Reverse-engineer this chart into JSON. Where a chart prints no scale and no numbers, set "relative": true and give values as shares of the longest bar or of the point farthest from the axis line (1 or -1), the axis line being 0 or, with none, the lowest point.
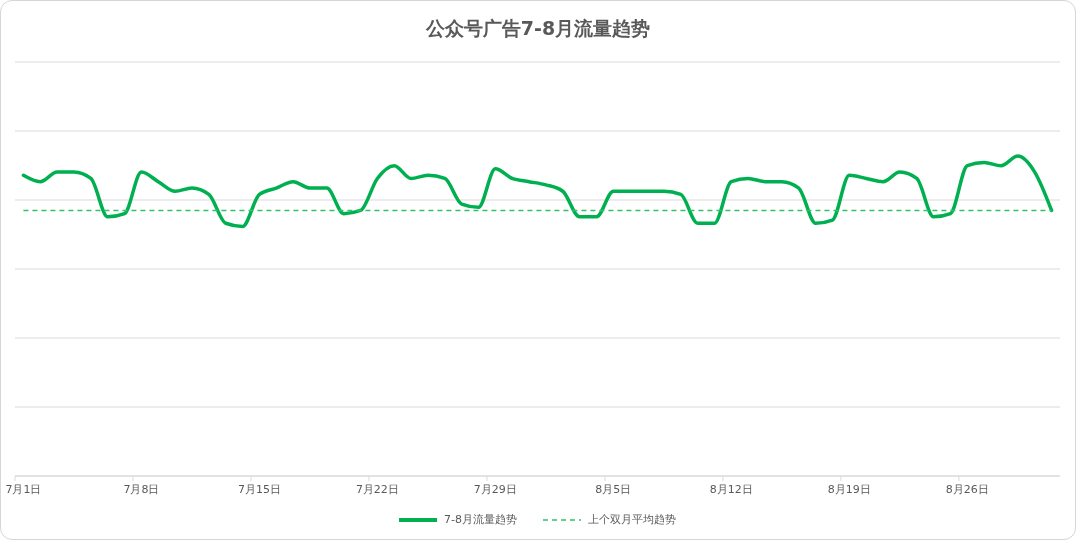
{
  "chart_data": {
    "type": "line",
    "title": "公众号广告7-8月流量趋势",
    "categories": [
      "7月1日",
      null,
      null,
      null,
      null,
      null,
      null,
      "7月8日",
      null,
      null,
      null,
      null,
      null,
      null,
      "7月15日",
      null,
      null,
      null,
      null,
      null,
      null,
      "7月22日",
      null,
      null,
      null,
      null,
      null,
      null,
      "7月29日",
      null,
      null,
      null,
      null,
      null,
      null,
      "8月5日",
      null,
      null,
      null,
      null,
      null,
      null,
      "8月12日",
      null,
      null,
      null,
      null,
      null,
      null,
      "8月19日",
      null,
      null,
      null,
      null,
      null,
      null,
      "8月26日",
      null,
      null,
      null,
      null,
      null
    ],
    "series": [
      {
        "name": "7-8月流量趋势",
        "color": "#00b050",
        "values": [
          0.94,
          0.92,
          0.95,
          0.95,
          0.93,
          0.81,
          0.82,
          0.95,
          0.92,
          0.89,
          0.9,
          0.88,
          0.79,
          0.78,
          0.88,
          0.9,
          0.92,
          0.9,
          0.9,
          0.82,
          0.83,
          0.93,
          0.97,
          0.93,
          0.94,
          0.93,
          0.85,
          0.84,
          0.96,
          0.93,
          0.92,
          0.91,
          0.89,
          0.81,
          0.81,
          0.89,
          0.89,
          0.89,
          0.89,
          0.88,
          0.79,
          0.79,
          0.92,
          0.93,
          0.92,
          0.92,
          0.9,
          0.79,
          0.8,
          0.94,
          0.93,
          0.92,
          0.95,
          0.93,
          0.81,
          0.82,
          0.97,
          0.98,
          0.97,
          1,
          0.95,
          0.83
        ]
      },
      {
        "name": "上个双月平均趋势",
        "color": "#33c26a",
        "line_style": "dashed",
        "values": [
          0.83,
          0.83,
          0.83,
          0.83,
          0.83,
          0.83,
          0.83,
          0.83,
          0.83,
          0.83,
          0.83,
          0.83,
          0.83,
          0.83,
          0.83,
          0.83,
          0.83,
          0.83,
          0.83,
          0.83,
          0.83,
          0.83,
          0.83,
          0.83,
          0.83,
          0.83,
          0.83,
          0.83,
          0.83,
          0.83,
          0.83,
          0.83,
          0.83,
          0.83,
          0.83,
          0.83,
          0.83,
          0.83,
          0.83,
          0.83,
          0.83,
          0.83,
          0.83,
          0.83,
          0.83,
          0.83,
          0.83,
          0.83,
          0.83,
          0.83,
          0.83,
          0.83,
          0.83,
          0.83,
          0.83,
          0.83,
          0.83,
          0.83,
          0.83,
          0.83,
          0.83,
          0.83
        ]
      }
    ],
    "relative": true,
    "grid": "y",
    "legend": "bottom"
  }
}
